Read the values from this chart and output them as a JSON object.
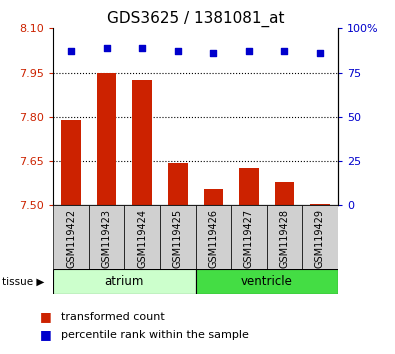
{
  "title": "GDS3625 / 1381081_at",
  "samples": [
    "GSM119422",
    "GSM119423",
    "GSM119424",
    "GSM119425",
    "GSM119426",
    "GSM119427",
    "GSM119428",
    "GSM119429"
  ],
  "transformed_count": [
    7.79,
    7.95,
    7.925,
    7.645,
    7.555,
    7.625,
    7.58,
    7.505
  ],
  "percentile_rank": [
    87,
    89,
    89,
    87,
    86,
    87,
    87,
    86
  ],
  "ylim_left": [
    7.5,
    8.1
  ],
  "yticks_left": [
    7.5,
    7.65,
    7.8,
    7.95,
    8.1
  ],
  "ylim_right": [
    0,
    100
  ],
  "yticks_right": [
    0,
    25,
    50,
    75,
    100
  ],
  "yticklabels_right": [
    "0",
    "25",
    "50",
    "75",
    "100%"
  ],
  "dotted_lines": [
    7.65,
    7.8,
    7.95
  ],
  "bar_color": "#cc2200",
  "dot_color": "#0000cc",
  "tissue_groups": [
    {
      "label": "atrium",
      "start": 0,
      "end": 4,
      "color": "#ccffcc"
    },
    {
      "label": "ventricle",
      "start": 4,
      "end": 8,
      "color": "#44dd44"
    }
  ],
  "legend_bar_label": "transformed count",
  "legend_dot_label": "percentile rank within the sample",
  "tissue_label": "tissue",
  "bar_base": 7.5,
  "bar_width": 0.55,
  "tick_label_color_left": "#cc2200",
  "tick_label_color_right": "#0000cc",
  "sample_bg_color": "#d0d0d0",
  "title_fontsize": 11,
  "axis_fontsize": 8,
  "legend_fontsize": 8
}
